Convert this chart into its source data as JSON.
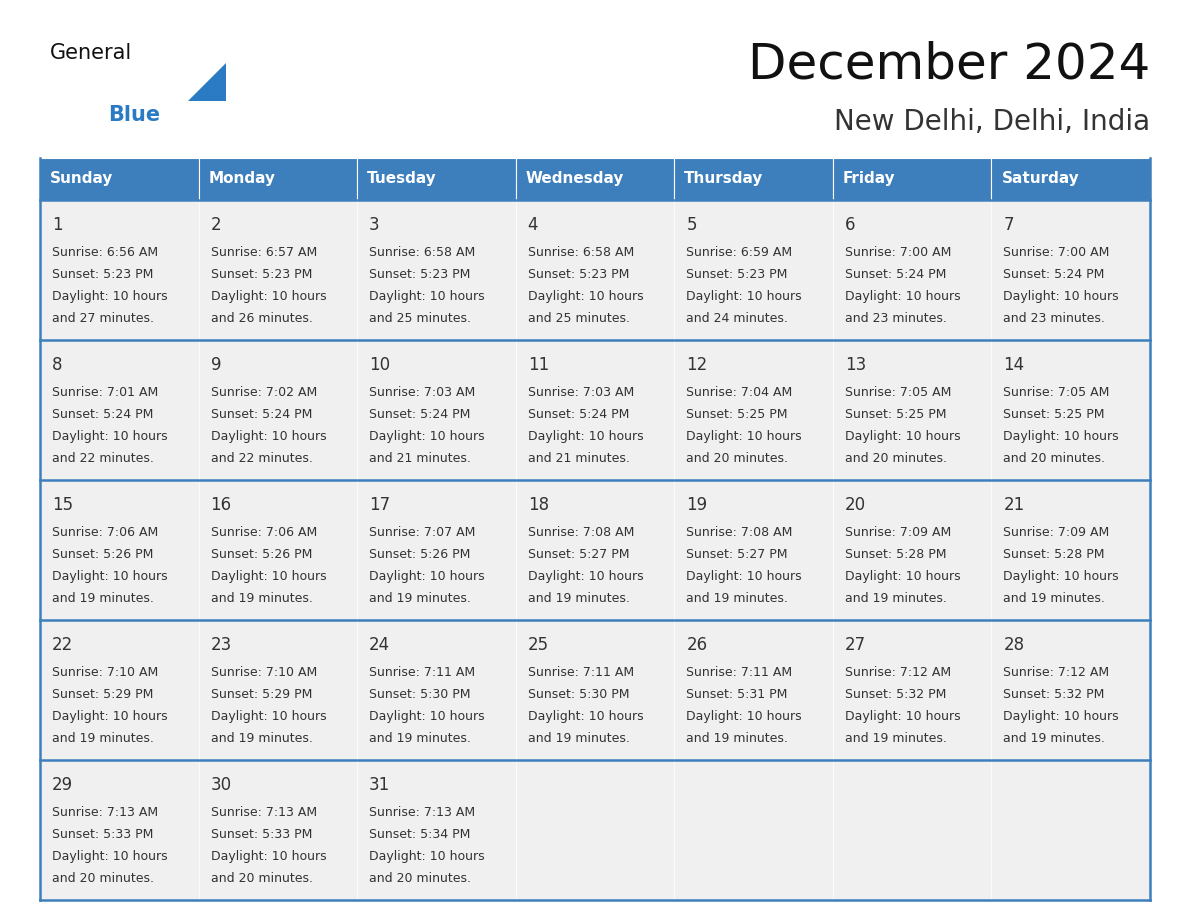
{
  "title": "December 2024",
  "subtitle": "New Delhi, Delhi, India",
  "header_color": "#3d7ebc",
  "header_text_color": "#ffffff",
  "weekdays": [
    "Sunday",
    "Monday",
    "Tuesday",
    "Wednesday",
    "Thursday",
    "Friday",
    "Saturday"
  ],
  "bg_color": "#ffffff",
  "cell_bg_color": "#f0f0f0",
  "cell_text_color": "#333333",
  "border_color": "#3d7ebc",
  "days": [
    {
      "date": 1,
      "row": 0,
      "col": 0,
      "sunrise": "6:56 AM",
      "sunset": "5:23 PM",
      "daylight": "10 hours and 27 minutes"
    },
    {
      "date": 2,
      "row": 0,
      "col": 1,
      "sunrise": "6:57 AM",
      "sunset": "5:23 PM",
      "daylight": "10 hours and 26 minutes"
    },
    {
      "date": 3,
      "row": 0,
      "col": 2,
      "sunrise": "6:58 AM",
      "sunset": "5:23 PM",
      "daylight": "10 hours and 25 minutes"
    },
    {
      "date": 4,
      "row": 0,
      "col": 3,
      "sunrise": "6:58 AM",
      "sunset": "5:23 PM",
      "daylight": "10 hours and 25 minutes"
    },
    {
      "date": 5,
      "row": 0,
      "col": 4,
      "sunrise": "6:59 AM",
      "sunset": "5:23 PM",
      "daylight": "10 hours and 24 minutes"
    },
    {
      "date": 6,
      "row": 0,
      "col": 5,
      "sunrise": "7:00 AM",
      "sunset": "5:24 PM",
      "daylight": "10 hours and 23 minutes"
    },
    {
      "date": 7,
      "row": 0,
      "col": 6,
      "sunrise": "7:00 AM",
      "sunset": "5:24 PM",
      "daylight": "10 hours and 23 minutes"
    },
    {
      "date": 8,
      "row": 1,
      "col": 0,
      "sunrise": "7:01 AM",
      "sunset": "5:24 PM",
      "daylight": "10 hours and 22 minutes"
    },
    {
      "date": 9,
      "row": 1,
      "col": 1,
      "sunrise": "7:02 AM",
      "sunset": "5:24 PM",
      "daylight": "10 hours and 22 minutes"
    },
    {
      "date": 10,
      "row": 1,
      "col": 2,
      "sunrise": "7:03 AM",
      "sunset": "5:24 PM",
      "daylight": "10 hours and 21 minutes"
    },
    {
      "date": 11,
      "row": 1,
      "col": 3,
      "sunrise": "7:03 AM",
      "sunset": "5:24 PM",
      "daylight": "10 hours and 21 minutes"
    },
    {
      "date": 12,
      "row": 1,
      "col": 4,
      "sunrise": "7:04 AM",
      "sunset": "5:25 PM",
      "daylight": "10 hours and 20 minutes"
    },
    {
      "date": 13,
      "row": 1,
      "col": 5,
      "sunrise": "7:05 AM",
      "sunset": "5:25 PM",
      "daylight": "10 hours and 20 minutes"
    },
    {
      "date": 14,
      "row": 1,
      "col": 6,
      "sunrise": "7:05 AM",
      "sunset": "5:25 PM",
      "daylight": "10 hours and 20 minutes"
    },
    {
      "date": 15,
      "row": 2,
      "col": 0,
      "sunrise": "7:06 AM",
      "sunset": "5:26 PM",
      "daylight": "10 hours and 19 minutes"
    },
    {
      "date": 16,
      "row": 2,
      "col": 1,
      "sunrise": "7:06 AM",
      "sunset": "5:26 PM",
      "daylight": "10 hours and 19 minutes"
    },
    {
      "date": 17,
      "row": 2,
      "col": 2,
      "sunrise": "7:07 AM",
      "sunset": "5:26 PM",
      "daylight": "10 hours and 19 minutes"
    },
    {
      "date": 18,
      "row": 2,
      "col": 3,
      "sunrise": "7:08 AM",
      "sunset": "5:27 PM",
      "daylight": "10 hours and 19 minutes"
    },
    {
      "date": 19,
      "row": 2,
      "col": 4,
      "sunrise": "7:08 AM",
      "sunset": "5:27 PM",
      "daylight": "10 hours and 19 minutes"
    },
    {
      "date": 20,
      "row": 2,
      "col": 5,
      "sunrise": "7:09 AM",
      "sunset": "5:28 PM",
      "daylight": "10 hours and 19 minutes"
    },
    {
      "date": 21,
      "row": 2,
      "col": 6,
      "sunrise": "7:09 AM",
      "sunset": "5:28 PM",
      "daylight": "10 hours and 19 minutes"
    },
    {
      "date": 22,
      "row": 3,
      "col": 0,
      "sunrise": "7:10 AM",
      "sunset": "5:29 PM",
      "daylight": "10 hours and 19 minutes"
    },
    {
      "date": 23,
      "row": 3,
      "col": 1,
      "sunrise": "7:10 AM",
      "sunset": "5:29 PM",
      "daylight": "10 hours and 19 minutes"
    },
    {
      "date": 24,
      "row": 3,
      "col": 2,
      "sunrise": "7:11 AM",
      "sunset": "5:30 PM",
      "daylight": "10 hours and 19 minutes"
    },
    {
      "date": 25,
      "row": 3,
      "col": 3,
      "sunrise": "7:11 AM",
      "sunset": "5:30 PM",
      "daylight": "10 hours and 19 minutes"
    },
    {
      "date": 26,
      "row": 3,
      "col": 4,
      "sunrise": "7:11 AM",
      "sunset": "5:31 PM",
      "daylight": "10 hours and 19 minutes"
    },
    {
      "date": 27,
      "row": 3,
      "col": 5,
      "sunrise": "7:12 AM",
      "sunset": "5:32 PM",
      "daylight": "10 hours and 19 minutes"
    },
    {
      "date": 28,
      "row": 3,
      "col": 6,
      "sunrise": "7:12 AM",
      "sunset": "5:32 PM",
      "daylight": "10 hours and 19 minutes"
    },
    {
      "date": 29,
      "row": 4,
      "col": 0,
      "sunrise": "7:13 AM",
      "sunset": "5:33 PM",
      "daylight": "10 hours and 20 minutes"
    },
    {
      "date": 30,
      "row": 4,
      "col": 1,
      "sunrise": "7:13 AM",
      "sunset": "5:33 PM",
      "daylight": "10 hours and 20 minutes"
    },
    {
      "date": 31,
      "row": 4,
      "col": 2,
      "sunrise": "7:13 AM",
      "sunset": "5:34 PM",
      "daylight": "10 hours and 20 minutes"
    }
  ]
}
